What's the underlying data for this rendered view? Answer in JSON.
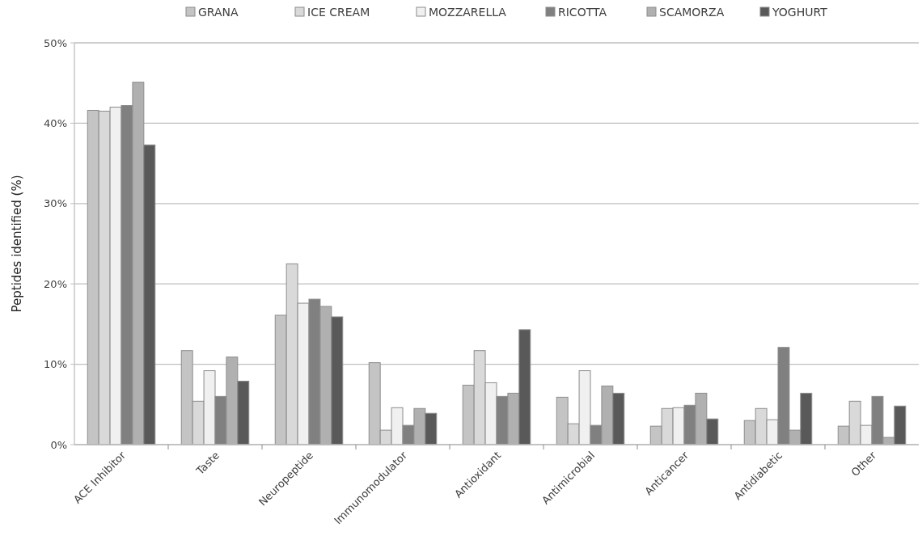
{
  "chart_data": {
    "type": "bar",
    "ylabel": "Peptides identified (%)",
    "categories": [
      "ACE Inhibitor",
      "Taste",
      "Neuropeptide",
      "Immunomodulator",
      "Antioxidant",
      "Antimicrobial",
      "Anticancer",
      "Antidiabetic",
      "Other"
    ],
    "series": [
      {
        "name": "GRANA",
        "color": "#c4c4c4",
        "values": [
          41.6,
          11.7,
          16.1,
          10.2,
          7.4,
          5.9,
          2.3,
          3.0,
          2.3
        ]
      },
      {
        "name": "ICE CREAM",
        "color": "#d9d9d9",
        "values": [
          41.5,
          5.4,
          22.5,
          1.8,
          11.7,
          2.6,
          4.5,
          4.5,
          5.4
        ]
      },
      {
        "name": "MOZZARELLA",
        "color": "#f0f0f0",
        "values": [
          42.0,
          9.2,
          17.6,
          4.6,
          7.7,
          9.2,
          4.6,
          3.1,
          2.4
        ]
      },
      {
        "name": "RICOTTA",
        "color": "#808080",
        "values": [
          42.2,
          6.0,
          18.1,
          2.4,
          6.0,
          2.4,
          4.9,
          12.1,
          6.0
        ]
      },
      {
        "name": "SCAMORZA",
        "color": "#b0b0b0",
        "values": [
          45.1,
          10.9,
          17.2,
          4.5,
          6.4,
          7.3,
          6.4,
          1.8,
          0.9
        ]
      },
      {
        "name": "YOGHURT",
        "color": "#595959",
        "values": [
          37.3,
          7.9,
          15.9,
          3.9,
          14.3,
          6.4,
          3.2,
          6.4,
          4.8
        ]
      }
    ],
    "ylim": [
      0,
      50
    ],
    "yticks": [
      {
        "value": 0,
        "label": "0%"
      },
      {
        "value": 10,
        "label": "10%"
      },
      {
        "value": 20,
        "label": "20%"
      },
      {
        "value": 30,
        "label": "30%"
      },
      {
        "value": 40,
        "label": "40%"
      },
      {
        "value": 50,
        "label": "50%"
      }
    ],
    "grid": "y",
    "legend": "top"
  }
}
